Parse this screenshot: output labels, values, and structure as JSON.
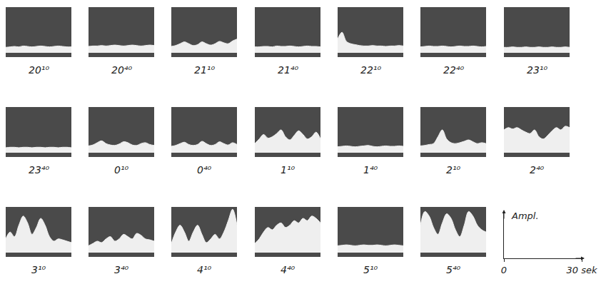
{
  "chart_data": [
    {
      "type": "area",
      "title": "20¹⁰",
      "color": "#efefef",
      "xlim": [
        0,
        30
      ],
      "ylim": [
        0,
        1
      ],
      "tick_labels": false,
      "x": [
        0,
        2,
        4,
        6,
        8,
        10,
        12,
        14,
        16,
        18,
        20,
        22,
        24,
        26,
        28,
        30
      ],
      "values": [
        0.12,
        0.13,
        0.14,
        0.13,
        0.15,
        0.14,
        0.13,
        0.14,
        0.15,
        0.14,
        0.13,
        0.14,
        0.15,
        0.14,
        0.13,
        0.13
      ]
    },
    {
      "type": "area",
      "title": "20⁴⁰",
      "color": "#efefef",
      "xlim": [
        0,
        30
      ],
      "ylim": [
        0,
        1
      ],
      "tick_labels": false,
      "x": [
        0,
        2,
        4,
        6,
        8,
        10,
        12,
        14,
        16,
        18,
        20,
        22,
        24,
        26,
        28,
        30
      ],
      "values": [
        0.14,
        0.15,
        0.15,
        0.16,
        0.15,
        0.16,
        0.17,
        0.16,
        0.15,
        0.16,
        0.17,
        0.16,
        0.15,
        0.16,
        0.17,
        0.16
      ]
    },
    {
      "type": "area",
      "title": "21¹⁰",
      "color": "#efefef",
      "xlim": [
        0,
        30
      ],
      "ylim": [
        0,
        1
      ],
      "tick_labels": false,
      "x": [
        0,
        2,
        4,
        6,
        8,
        10,
        12,
        14,
        16,
        18,
        20,
        22,
        24,
        26,
        28,
        30
      ],
      "values": [
        0.14,
        0.16,
        0.2,
        0.24,
        0.2,
        0.16,
        0.18,
        0.24,
        0.2,
        0.17,
        0.2,
        0.25,
        0.22,
        0.2,
        0.26,
        0.3
      ]
    },
    {
      "type": "area",
      "title": "21⁴⁰",
      "color": "#efefef",
      "xlim": [
        0,
        30
      ],
      "ylim": [
        0,
        1
      ],
      "tick_labels": false,
      "x": [
        0,
        2,
        4,
        6,
        8,
        10,
        12,
        14,
        16,
        18,
        20,
        22,
        24,
        26,
        28,
        30
      ],
      "values": [
        0.13,
        0.13,
        0.14,
        0.14,
        0.13,
        0.15,
        0.14,
        0.14,
        0.15,
        0.14,
        0.13,
        0.14,
        0.15,
        0.14,
        0.14,
        0.13
      ]
    },
    {
      "type": "area",
      "title": "22¹⁰",
      "color": "#efefef",
      "xlim": [
        0,
        30
      ],
      "ylim": [
        0,
        1
      ],
      "tick_labels": false,
      "x": [
        0,
        2,
        4,
        6,
        8,
        10,
        12,
        14,
        16,
        18,
        20,
        22,
        24,
        26,
        28,
        30
      ],
      "values": [
        0.3,
        0.45,
        0.25,
        0.2,
        0.18,
        0.16,
        0.15,
        0.15,
        0.16,
        0.15,
        0.15,
        0.14,
        0.15,
        0.15,
        0.16,
        0.15
      ]
    },
    {
      "type": "area",
      "title": "22⁴⁰",
      "color": "#efefef",
      "xlim": [
        0,
        30
      ],
      "ylim": [
        0,
        1
      ],
      "tick_labels": false,
      "x": [
        0,
        2,
        4,
        6,
        8,
        10,
        12,
        14,
        16,
        18,
        20,
        22,
        24,
        26,
        28,
        30
      ],
      "values": [
        0.13,
        0.14,
        0.15,
        0.14,
        0.14,
        0.15,
        0.14,
        0.13,
        0.14,
        0.15,
        0.14,
        0.14,
        0.15,
        0.14,
        0.13,
        0.14
      ]
    },
    {
      "type": "area",
      "title": "23¹⁰",
      "color": "#efefef",
      "xlim": [
        0,
        30
      ],
      "ylim": [
        0,
        1
      ],
      "tick_labels": false,
      "x": [
        0,
        2,
        4,
        6,
        8,
        10,
        12,
        14,
        16,
        18,
        20,
        22,
        24,
        26,
        28,
        30
      ],
      "values": [
        0.12,
        0.12,
        0.13,
        0.12,
        0.12,
        0.13,
        0.12,
        0.12,
        0.13,
        0.12,
        0.12,
        0.13,
        0.12,
        0.12,
        0.13,
        0.12
      ]
    },
    {
      "type": "area",
      "title": "23⁴⁰",
      "color": "#efefef",
      "xlim": [
        0,
        30
      ],
      "ylim": [
        0,
        1
      ],
      "tick_labels": false,
      "x": [
        0,
        2,
        4,
        6,
        8,
        10,
        12,
        14,
        16,
        18,
        20,
        22,
        24,
        26,
        28,
        30
      ],
      "values": [
        0.11,
        0.12,
        0.12,
        0.11,
        0.12,
        0.12,
        0.11,
        0.12,
        0.12,
        0.11,
        0.12,
        0.12,
        0.11,
        0.12,
        0.12,
        0.11
      ]
    },
    {
      "type": "area",
      "title": "0¹⁰",
      "color": "#efefef",
      "xlim": [
        0,
        30
      ],
      "ylim": [
        0,
        1
      ],
      "tick_labels": false,
      "x": [
        0,
        2,
        4,
        6,
        8,
        10,
        12,
        14,
        16,
        18,
        20,
        22,
        24,
        26,
        28,
        30
      ],
      "values": [
        0.15,
        0.17,
        0.22,
        0.26,
        0.2,
        0.17,
        0.16,
        0.19,
        0.24,
        0.22,
        0.17,
        0.16,
        0.2,
        0.22,
        0.18,
        0.16
      ]
    },
    {
      "type": "area",
      "title": "0⁴⁰",
      "color": "#efefef",
      "xlim": [
        0,
        30
      ],
      "ylim": [
        0,
        1
      ],
      "tick_labels": false,
      "x": [
        0,
        2,
        4,
        6,
        8,
        10,
        12,
        14,
        16,
        18,
        20,
        22,
        24,
        26,
        28,
        30
      ],
      "values": [
        0.14,
        0.16,
        0.2,
        0.23,
        0.18,
        0.16,
        0.18,
        0.25,
        0.2,
        0.16,
        0.18,
        0.24,
        0.2,
        0.17,
        0.22,
        0.18
      ]
    },
    {
      "type": "area",
      "title": "1¹⁰",
      "color": "#efefef",
      "xlim": [
        0,
        30
      ],
      "ylim": [
        0,
        1
      ],
      "tick_labels": false,
      "x": [
        0,
        2,
        4,
        6,
        8,
        10,
        12,
        14,
        16,
        18,
        20,
        22,
        24,
        26,
        28,
        30
      ],
      "values": [
        0.2,
        0.3,
        0.4,
        0.32,
        0.35,
        0.42,
        0.5,
        0.35,
        0.28,
        0.38,
        0.48,
        0.4,
        0.3,
        0.35,
        0.45,
        0.3
      ]
    },
    {
      "type": "area",
      "title": "1⁴⁰",
      "color": "#efefef",
      "xlim": [
        0,
        30
      ],
      "ylim": [
        0,
        1
      ],
      "tick_labels": false,
      "x": [
        0,
        2,
        4,
        6,
        8,
        10,
        12,
        14,
        16,
        18,
        20,
        22,
        24,
        26,
        28,
        30
      ],
      "values": [
        0.13,
        0.14,
        0.15,
        0.14,
        0.13,
        0.14,
        0.15,
        0.16,
        0.14,
        0.13,
        0.14,
        0.15,
        0.14,
        0.14,
        0.15,
        0.14
      ]
    },
    {
      "type": "area",
      "title": "2¹⁰",
      "color": "#efefef",
      "xlim": [
        0,
        30
      ],
      "ylim": [
        0,
        1
      ],
      "tick_labels": false,
      "x": [
        0,
        2,
        4,
        6,
        8,
        10,
        12,
        14,
        16,
        18,
        20,
        22,
        24,
        26,
        28,
        30
      ],
      "values": [
        0.15,
        0.16,
        0.18,
        0.2,
        0.35,
        0.5,
        0.3,
        0.22,
        0.2,
        0.22,
        0.25,
        0.28,
        0.24,
        0.2,
        0.22,
        0.2
      ]
    },
    {
      "type": "area",
      "title": "2⁴⁰",
      "color": "#efefef",
      "xlim": [
        0,
        30
      ],
      "ylim": [
        0,
        1
      ],
      "tick_labels": false,
      "x": [
        0,
        2,
        4,
        6,
        8,
        10,
        12,
        14,
        16,
        18,
        20,
        22,
        24,
        26,
        28,
        30
      ],
      "values": [
        0.5,
        0.55,
        0.52,
        0.55,
        0.5,
        0.45,
        0.42,
        0.5,
        0.35,
        0.3,
        0.38,
        0.48,
        0.55,
        0.5,
        0.58,
        0.55
      ]
    },
    {
      "type": "area",
      "title": "3¹⁰",
      "color": "#efefef",
      "xlim": [
        0,
        30
      ],
      "ylim": [
        0,
        1
      ],
      "tick_labels": false,
      "x": [
        0,
        2,
        4,
        6,
        8,
        10,
        12,
        14,
        16,
        18,
        20,
        22,
        24,
        26,
        28,
        30
      ],
      "values": [
        0.3,
        0.45,
        0.35,
        0.6,
        0.8,
        0.65,
        0.4,
        0.55,
        0.75,
        0.6,
        0.35,
        0.25,
        0.3,
        0.28,
        0.25,
        0.22
      ]
    },
    {
      "type": "area",
      "title": "3⁴⁰",
      "color": "#efefef",
      "xlim": [
        0,
        30
      ],
      "ylim": [
        0,
        1
      ],
      "tick_labels": false,
      "x": [
        0,
        2,
        4,
        6,
        8,
        10,
        12,
        14,
        16,
        18,
        20,
        22,
        24,
        26,
        28,
        30
      ],
      "values": [
        0.15,
        0.2,
        0.25,
        0.22,
        0.3,
        0.35,
        0.25,
        0.3,
        0.4,
        0.35,
        0.3,
        0.42,
        0.38,
        0.3,
        0.28,
        0.25
      ]
    },
    {
      "type": "area",
      "title": "4¹⁰",
      "color": "#efefef",
      "xlim": [
        0,
        30
      ],
      "ylim": [
        0,
        1
      ],
      "tick_labels": false,
      "x": [
        0,
        2,
        4,
        6,
        8,
        10,
        12,
        14,
        16,
        18,
        20,
        22,
        24,
        26,
        28,
        30
      ],
      "values": [
        0.2,
        0.45,
        0.6,
        0.45,
        0.25,
        0.45,
        0.6,
        0.4,
        0.22,
        0.3,
        0.4,
        0.3,
        0.45,
        0.7,
        0.95,
        0.6
      ]
    },
    {
      "type": "area",
      "title": "4⁴⁰",
      "color": "#efefef",
      "xlim": [
        0,
        30
      ],
      "ylim": [
        0,
        1
      ],
      "tick_labels": false,
      "x": [
        0,
        2,
        4,
        6,
        8,
        10,
        12,
        14,
        16,
        18,
        20,
        22,
        24,
        26,
        28,
        30
      ],
      "values": [
        0.2,
        0.3,
        0.45,
        0.55,
        0.5,
        0.6,
        0.65,
        0.55,
        0.6,
        0.7,
        0.65,
        0.75,
        0.7,
        0.8,
        0.75,
        0.65
      ]
    },
    {
      "type": "area",
      "title": "5¹⁰",
      "color": "#efefef",
      "xlim": [
        0,
        30
      ],
      "ylim": [
        0,
        1
      ],
      "tick_labels": false,
      "x": [
        0,
        2,
        4,
        6,
        8,
        10,
        12,
        14,
        16,
        18,
        20,
        22,
        24,
        26,
        28,
        30
      ],
      "values": [
        0.15,
        0.16,
        0.17,
        0.16,
        0.15,
        0.16,
        0.17,
        0.16,
        0.16,
        0.17,
        0.16,
        0.15,
        0.16,
        0.17,
        0.16,
        0.15
      ]
    },
    {
      "type": "area",
      "title": "5⁴⁰",
      "color": "#efefef",
      "xlim": [
        0,
        30
      ],
      "ylim": [
        0,
        1
      ],
      "tick_labels": false,
      "x": [
        0,
        2,
        4,
        6,
        8,
        10,
        12,
        14,
        16,
        18,
        20,
        22,
        24,
        26,
        28,
        30
      ],
      "values": [
        0.6,
        0.9,
        0.8,
        0.55,
        0.4,
        0.65,
        0.85,
        0.75,
        0.5,
        0.35,
        0.6,
        0.9,
        0.8,
        0.6,
        0.5,
        0.45
      ]
    },
    {
      "type": "axis_key",
      "y_label": "Ampl.",
      "xlim": [
        0,
        30
      ],
      "xticks": [
        0,
        {
          "value": 30,
          "label": "30 sek"
        }
      ]
    }
  ]
}
